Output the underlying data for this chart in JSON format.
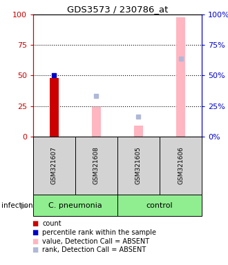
{
  "title": "GDS3573 / 230786_at",
  "samples": [
    "GSM321607",
    "GSM321608",
    "GSM321605",
    "GSM321606"
  ],
  "ylim": [
    0,
    100
  ],
  "yticks": [
    0,
    25,
    50,
    75,
    100
  ],
  "red_bar_values": [
    48,
    null,
    null,
    null
  ],
  "blue_square_values": [
    50,
    null,
    null,
    null
  ],
  "pink_bar_values": [
    null,
    24,
    9,
    98
  ],
  "lavender_square_values": [
    null,
    33,
    16,
    64
  ],
  "left_axis_color": "#cc0000",
  "right_axis_color": "#0000cc",
  "cpneumonia_color": "#90ee90",
  "control_color": "#90ee90",
  "sample_bg_color": "#d3d3d3",
  "pink_bar_color": "#ffb6c1",
  "lavender_square_color": "#b0b8d8",
  "red_bar_color": "#cc0000",
  "blue_square_color": "#0000cc",
  "infection_label": "infection",
  "legend_items": [
    {
      "color": "#cc0000",
      "label": "count"
    },
    {
      "color": "#0000cc",
      "label": "percentile rank within the sample"
    },
    {
      "color": "#ffb6c1",
      "label": "value, Detection Call = ABSENT"
    },
    {
      "color": "#b0b8d8",
      "label": "rank, Detection Call = ABSENT"
    }
  ],
  "fig_width": 3.3,
  "fig_height": 3.84,
  "dpi": 100
}
